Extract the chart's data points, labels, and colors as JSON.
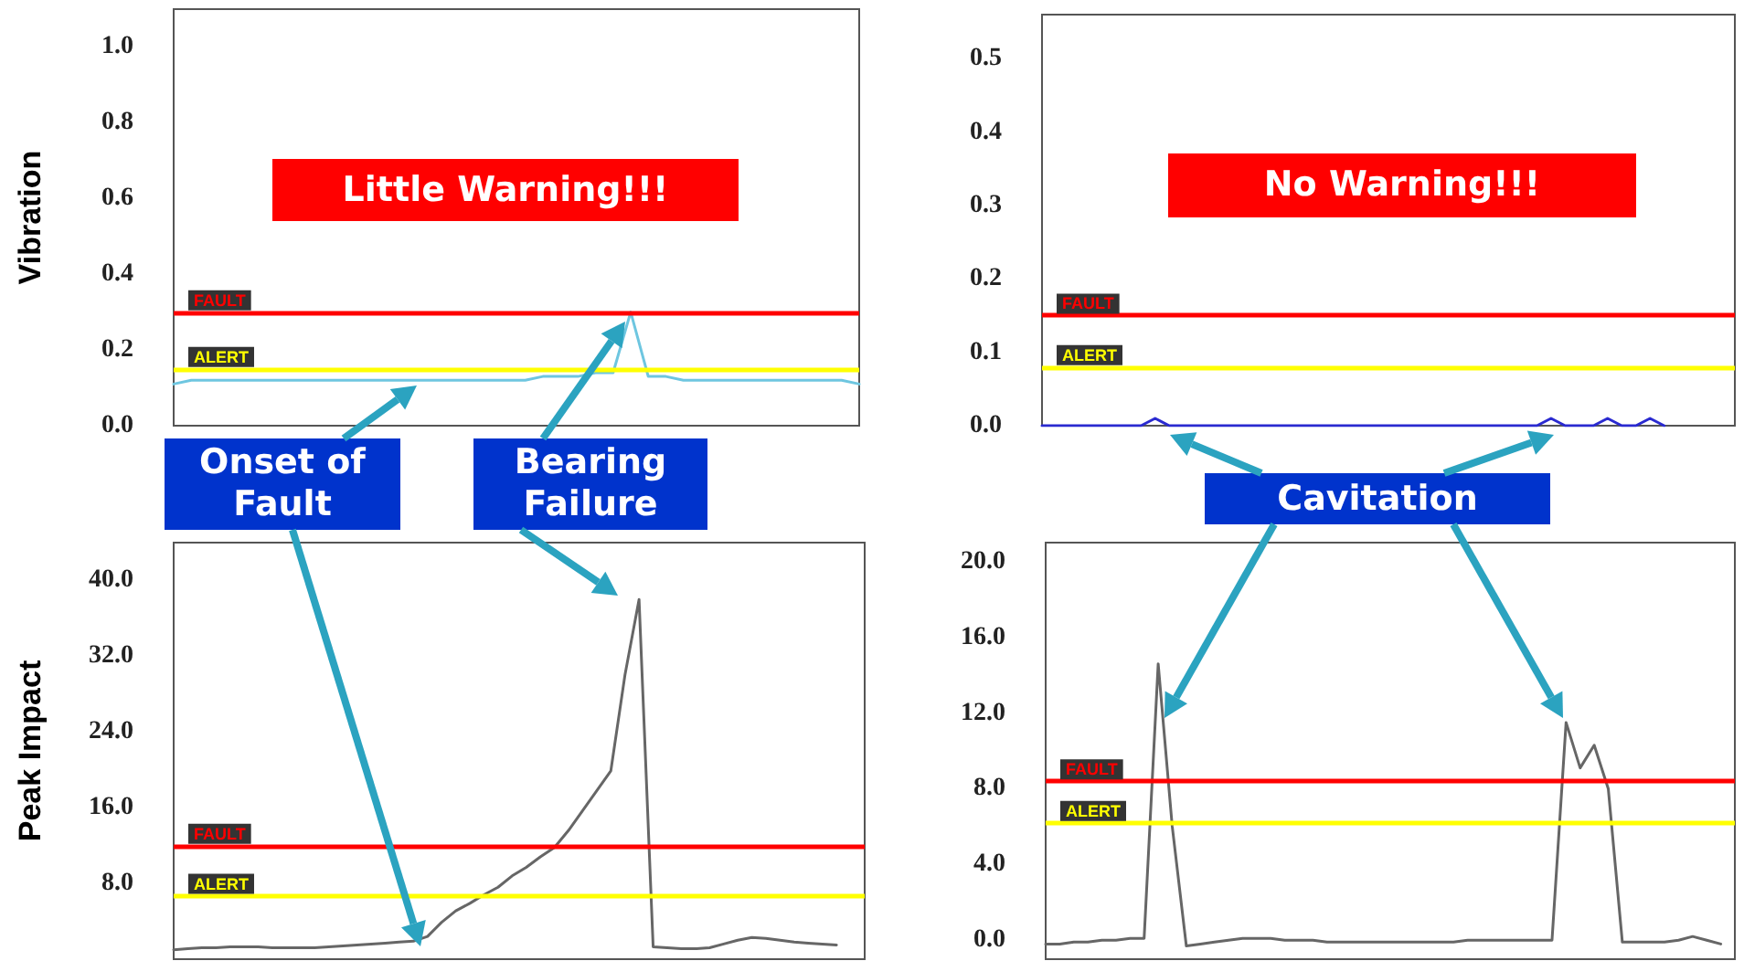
{
  "chart_data": [
    {
      "type": "line",
      "ylabel": "Vibration",
      "categories": [
        null,
        null,
        null,
        null,
        null,
        null,
        null,
        null,
        null,
        null,
        null,
        null,
        null,
        null,
        null,
        null,
        null,
        null,
        null,
        null,
        null,
        null,
        null,
        null,
        null,
        null,
        null,
        null,
        null,
        null,
        null,
        null,
        null,
        null,
        null,
        null,
        null,
        null,
        null,
        null
      ],
      "series": [
        {
          "color": "#6ec6e0",
          "values": [
            0.11,
            0.12,
            0.12,
            0.12,
            0.12,
            0.12,
            0.12,
            0.12,
            0.12,
            0.12,
            0.12,
            0.12,
            0.12,
            0.12,
            0.12,
            0.12,
            0.12,
            0.12,
            0.12,
            0.12,
            0.12,
            0.13,
            0.13,
            0.13,
            0.14,
            0.14,
            0.3,
            0.13,
            0.13,
            0.12,
            0.12,
            0.12,
            0.12,
            0.12,
            0.12,
            0.12,
            0.12,
            0.12,
            0.12,
            0.11
          ]
        }
      ],
      "ylim": [
        0,
        1.1
      ],
      "yticks": [
        {
          "value": 0,
          "label": "0.0"
        },
        {
          "value": 0.2,
          "label": "0.2"
        },
        {
          "value": 0.4,
          "label": "0.4"
        },
        {
          "value": 0.6,
          "label": "0.6"
        },
        {
          "value": 0.8,
          "label": "0.8"
        },
        {
          "value": 1,
          "label": "1.0"
        }
      ],
      "ref_lines": [
        {
          "axis": "y",
          "value": 0.3,
          "label": "FAULT",
          "color": "#ff0000"
        },
        {
          "axis": "y",
          "value": 0.15,
          "label": "ALERT",
          "color": "#ffff00"
        }
      ],
      "annotations": [
        "Little Warning!!!",
        "Onset of Fault",
        "Bearing Failure"
      ],
      "tick_labels": "y",
      "grid": false,
      "marker": "none",
      "line_style": "solid"
    },
    {
      "type": "line",
      "categories": [
        null,
        null,
        null,
        null,
        null,
        null,
        null,
        null,
        null,
        null,
        null,
        null,
        null,
        null,
        null,
        null,
        null,
        null,
        null,
        null,
        null,
        null,
        null,
        null,
        null,
        null,
        null,
        null,
        null,
        null,
        null,
        null,
        null,
        null,
        null,
        null,
        null,
        null,
        null,
        null,
        null,
        null,
        null,
        null,
        null,
        null,
        null,
        null,
        null,
        null
      ],
      "series": [
        {
          "color": "#2a2ad0",
          "values": [
            0,
            0,
            0,
            0,
            0,
            0,
            0,
            0,
            0.01,
            0,
            0,
            0,
            0,
            0,
            0,
            0,
            0,
            0,
            0,
            0,
            0,
            0,
            0,
            0,
            0,
            0,
            0,
            0,
            0,
            0,
            0,
            0,
            0,
            0,
            0,
            0,
            0.01,
            0,
            0,
            0,
            0.01,
            0,
            0,
            0.01,
            0,
            null,
            null,
            null,
            null,
            null
          ]
        }
      ],
      "ylim": [
        0,
        0.56
      ],
      "yticks": [
        {
          "value": 0,
          "label": "0.0"
        },
        {
          "value": 0.1,
          "label": "0.1"
        },
        {
          "value": 0.2,
          "label": "0.2"
        },
        {
          "value": 0.3,
          "label": "0.3"
        },
        {
          "value": 0.4,
          "label": "0.4"
        },
        {
          "value": 0.5,
          "label": "0.5"
        }
      ],
      "ref_lines": [
        {
          "axis": "y",
          "value": 0.15,
          "label": "FAULT",
          "color": "#ff0000"
        },
        {
          "axis": "y",
          "value": 0.08,
          "label": "ALERT",
          "color": "#ffff00"
        }
      ],
      "annotations": [
        "No Warning!!!",
        "Cavitation"
      ],
      "tick_labels": "y",
      "grid": false,
      "marker": "none",
      "line_style": "solid"
    },
    {
      "type": "line",
      "ylabel": "Peak Impact",
      "categories": [
        null,
        null,
        null,
        null,
        null,
        null,
        null,
        null,
        null,
        null,
        null,
        null,
        null,
        null,
        null,
        null,
        null,
        null,
        null,
        null,
        null,
        null,
        null,
        null,
        null,
        null,
        null,
        null,
        null,
        null,
        null,
        null,
        null,
        null,
        null,
        null,
        null,
        null,
        null,
        null,
        null,
        null,
        null,
        null,
        null,
        null,
        null,
        null,
        null,
        null
      ],
      "series": [
        {
          "color": "#666666",
          "values": [
            1.0,
            1.1,
            1.2,
            1.2,
            1.3,
            1.3,
            1.3,
            1.2,
            1.2,
            1.2,
            1.2,
            1.3,
            1.4,
            1.5,
            1.6,
            1.7,
            1.8,
            1.9,
            2.4,
            3.9,
            5.1,
            5.9,
            6.8,
            7.6,
            8.8,
            9.7,
            10.8,
            11.8,
            13.6,
            15.7,
            17.8,
            19.9,
            30,
            38,
            1.3,
            1.2,
            1.1,
            1.1,
            1.2,
            1.6,
            2.0,
            2.3,
            2.2,
            2.0,
            1.8,
            1.7,
            1.6,
            1.5,
            null,
            null
          ]
        }
      ],
      "ylim": [
        0,
        44
      ],
      "yticks": [
        {
          "value": 8,
          "label": "8.0"
        },
        {
          "value": 16,
          "label": "16.0"
        },
        {
          "value": 24,
          "label": "24.0"
        },
        {
          "value": 32,
          "label": "32.0"
        },
        {
          "value": 40,
          "label": "40.0"
        }
      ],
      "ref_lines": [
        {
          "axis": "y",
          "value": 12,
          "label": "FAULT",
          "color": "#ff0000"
        },
        {
          "axis": "y",
          "value": 6.7,
          "label": "ALERT",
          "color": "#ffff00"
        }
      ],
      "tick_labels": "y",
      "grid": false,
      "marker": "none",
      "line_style": "solid"
    },
    {
      "type": "line",
      "categories": [
        null,
        null,
        null,
        null,
        null,
        null,
        null,
        null,
        null,
        null,
        null,
        null,
        null,
        null,
        null,
        null,
        null,
        null,
        null,
        null,
        null,
        null,
        null,
        null,
        null,
        null,
        null,
        null,
        null,
        null,
        null,
        null,
        null,
        null,
        null,
        null,
        null,
        null,
        null,
        null,
        null,
        null,
        null,
        null,
        null,
        null,
        null,
        null,
        null,
        null
      ],
      "series": [
        {
          "color": "#666666",
          "values": [
            -0.2,
            -0.2,
            -0.1,
            -0.1,
            0,
            0,
            0.1,
            0.1,
            14.6,
            6.0,
            -0.3,
            -0.2,
            -0.1,
            0,
            0.1,
            0.1,
            0.1,
            0,
            0,
            0,
            -0.1,
            -0.1,
            -0.1,
            -0.1,
            -0.1,
            -0.1,
            -0.1,
            -0.1,
            -0.1,
            -0.1,
            0,
            0,
            0,
            0,
            0,
            0,
            0,
            11.5,
            9.1,
            10.3,
            8.0,
            -0.1,
            -0.1,
            -0.1,
            -0.1,
            0,
            0.2,
            0,
            -0.2,
            null
          ]
        }
      ],
      "ylim": [
        -1,
        21
      ],
      "yticks": [
        {
          "value": 0,
          "label": "0.0"
        },
        {
          "value": 4,
          "label": "4.0"
        },
        {
          "value": 8,
          "label": "8.0"
        },
        {
          "value": 12,
          "label": "12.0"
        },
        {
          "value": 16,
          "label": "16.0"
        },
        {
          "value": 20,
          "label": "20.0"
        }
      ],
      "ref_lines": [
        {
          "axis": "y",
          "value": 8.4,
          "label": "FAULT",
          "color": "#ff0000"
        },
        {
          "axis": "y",
          "value": 6.2,
          "label": "ALERT",
          "color": "#ffff00"
        }
      ],
      "tick_labels": "y",
      "grid": false,
      "marker": "none",
      "line_style": "solid"
    }
  ]
}
